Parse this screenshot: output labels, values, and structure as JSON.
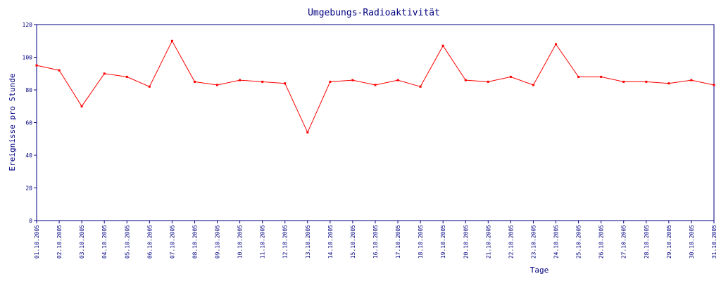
{
  "chart_data": {
    "type": "line",
    "title": "Umgebungs-Radioaktivität",
    "xlabel": "Tage",
    "ylabel": "Ereignisse pro Stunde",
    "ylim": [
      0,
      120
    ],
    "yticks": [
      0,
      20,
      40,
      60,
      80,
      100,
      120
    ],
    "xlim": [
      "2005-10-01",
      "2005-10-31"
    ],
    "xticks": [
      "01.10.2005",
      "02.10.2005",
      "03.10.2005",
      "04.10.2005",
      "05.10.2005",
      "06.10.2005",
      "07.10.2005",
      "08.10.2005",
      "09.10.2005",
      "10.10.2005",
      "11.10.2005",
      "12.10.2005",
      "13.10.2005",
      "14.10.2005",
      "15.10.2005",
      "16.10.2005",
      "17.10.2005",
      "18.10.2005",
      "19.10.2005",
      "20.10.2005",
      "21.10.2005",
      "22.10.2005",
      "23.10.2005",
      "24.10.2005",
      "25.10.2005",
      "26.10.2005",
      "27.10.2005",
      "28.10.2005",
      "29.10.2005",
      "30.10.2005",
      "31.10.2005"
    ],
    "grid": false,
    "colors": {
      "series": "#ff0000",
      "axis": "#000080"
    },
    "series": [
      {
        "x": [
          "2005-10-01",
          "2005-10-02",
          "2005-10-03",
          "2005-10-04",
          "2005-10-05",
          "2005-10-06",
          "2005-10-07",
          "2005-10-08",
          "2005-10-09",
          "2005-10-10",
          "2005-10-11",
          "2005-10-12",
          "2005-10-13",
          "2005-10-14",
          "2005-10-15",
          "2005-10-16",
          "2005-10-17",
          "2005-10-18",
          "2005-10-19",
          "2005-10-20",
          "2005-10-21",
          "2005-10-22",
          "2005-10-23",
          "2005-10-24",
          "2005-10-25",
          "2005-10-26",
          "2005-10-27",
          "2005-10-28",
          "2005-10-29",
          "2005-10-30",
          "2005-10-31"
        ],
        "values": [
          95,
          92,
          70,
          90,
          88,
          82,
          110,
          85,
          83,
          86,
          85,
          84,
          54,
          85,
          86,
          83,
          86,
          82,
          107,
          86,
          85,
          88,
          83,
          108,
          88,
          88,
          85,
          85,
          84,
          86,
          83
        ]
      }
    ]
  }
}
